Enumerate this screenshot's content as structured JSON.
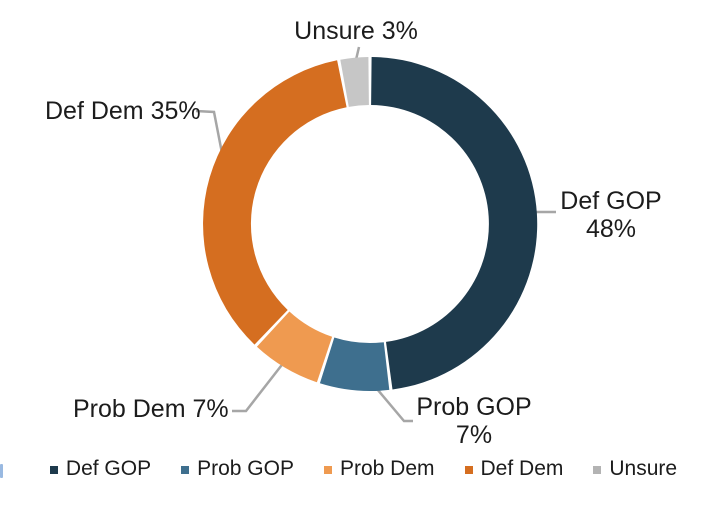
{
  "page": {
    "background": "#ffffff"
  },
  "chart_data": {
    "type": "pie",
    "subtype": "donut",
    "title": "",
    "categories": [
      "Def GOP",
      "Prob GOP",
      "Prob Dem",
      "Def Dem",
      "Unsure"
    ],
    "values": [
      48,
      7,
      7,
      35,
      3
    ],
    "unit": "%",
    "colors": [
      "#1e3a4c",
      "#3e6f8e",
      "#ef9a50",
      "#d56e20",
      "#c6c6c6"
    ],
    "start_angle": "12 o'clock",
    "direction": "clockwise",
    "donut_hole_ratio": 0.71,
    "gridlines": false,
    "legend_position": "bottom",
    "leader_line_color": "#a6a6a6",
    "legend": [
      {
        "label": "Def GOP",
        "color": "#1e3a4c"
      },
      {
        "label": "Prob GOP",
        "color": "#3e6f8e"
      },
      {
        "label": "Prob Dem",
        "color": "#ef9a50"
      },
      {
        "label": "Def Dem",
        "color": "#d56e20"
      },
      {
        "label": "Unsure",
        "color": "#b3b3b3"
      }
    ],
    "callouts": {
      "unsure": {
        "text": "Unsure 3%"
      },
      "def_dem": {
        "text": "Def Dem 35%"
      },
      "def_gop": {
        "line1": "Def GOP",
        "line2": "48%"
      },
      "prob_gop": {
        "line1": "Prob GOP",
        "line2": "7%"
      },
      "prob_dem": {
        "text": "Prob Dem 7%"
      }
    }
  }
}
